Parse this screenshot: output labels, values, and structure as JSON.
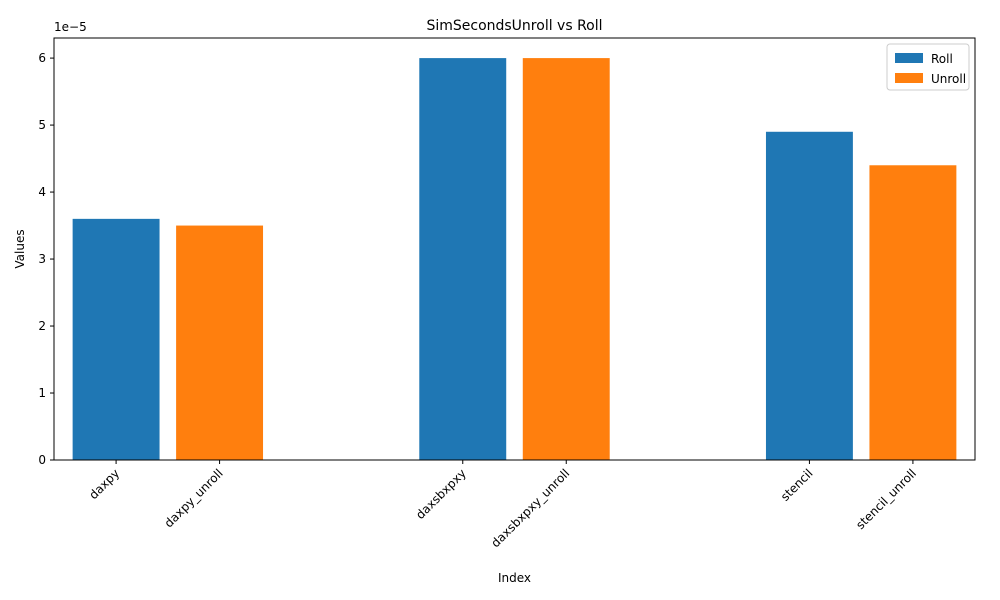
{
  "chart_data": {
    "type": "bar",
    "title": "SimSecondsUnroll vs Roll",
    "xlabel": "Index",
    "ylabel": "Values",
    "offset_text": "1e−5",
    "ylim": [
      0,
      6.3e-05
    ],
    "yticks": [
      0,
      1e-05,
      2e-05,
      3e-05,
      4e-05,
      5e-05,
      6e-05
    ],
    "ytick_labels": [
      "0",
      "1",
      "2",
      "3",
      "4",
      "5",
      "6"
    ],
    "grid": false,
    "legend_position": "top-right",
    "bars": [
      {
        "category": "daxpy",
        "series": "Roll",
        "value": 3.6e-05
      },
      {
        "category": "daxpy_unroll",
        "series": "Unroll",
        "value": 3.5e-05
      },
      {
        "category": "daxsbxpxy",
        "series": "Roll",
        "value": 6e-05
      },
      {
        "category": "daxsbxpxy_unroll",
        "series": "Unroll",
        "value": 6e-05
      },
      {
        "category": "stencil",
        "series": "Roll",
        "value": 4.9e-05
      },
      {
        "category": "stencil_unroll",
        "series": "Unroll",
        "value": 4.4e-05
      }
    ],
    "series": [
      {
        "name": "Roll",
        "color": "#1f77b4"
      },
      {
        "name": "Unroll",
        "color": "#ff7f0e"
      }
    ]
  }
}
